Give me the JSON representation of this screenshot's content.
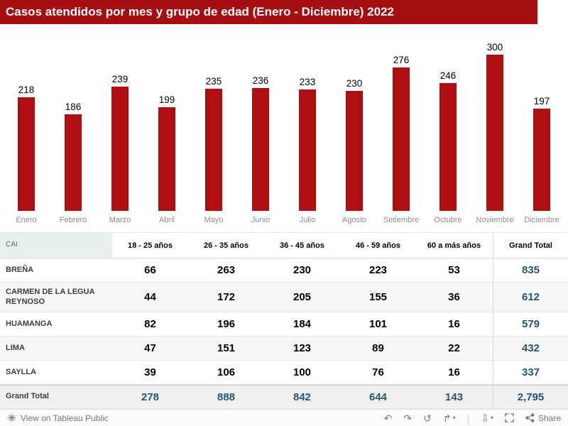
{
  "title_bar": {
    "title": "Casos atendidos por mes y grupo de edad (Enero - Diciembre) 2022"
  },
  "chart_data": {
    "type": "bar",
    "title": "Casos atendidos por mes y grupo de edad (Enero - Diciembre) 2022",
    "categories": [
      "Enero",
      "Febrero",
      "Marzo",
      "Abril",
      "Mayo",
      "Junio",
      "Julio",
      "Agosto",
      "Setiembre",
      "Octubre",
      "Noviembre",
      "Diciembre"
    ],
    "values": [
      218,
      186,
      239,
      199,
      235,
      236,
      233,
      230,
      276,
      246,
      300,
      197
    ],
    "ylim": [
      0,
      300
    ],
    "bar_color": "#B00F11",
    "value_labels_shown": true,
    "legend": "none",
    "grid": false
  },
  "table": {
    "id_header": "CAI",
    "columns": [
      "18 - 25 años",
      "26 - 35 años",
      "36 - 45 años",
      "46 - 59 años",
      "60 a más años"
    ],
    "total_header": "Grand Total",
    "rows": [
      {
        "label": "BREÑA",
        "values": [
          "66",
          "263",
          "230",
          "223",
          "53"
        ],
        "total": "835"
      },
      {
        "label": "CARMEN DE LA LEGUA REYNOSO",
        "values": [
          "44",
          "172",
          "205",
          "155",
          "36"
        ],
        "total": "612"
      },
      {
        "label": "HUAMANGA",
        "values": [
          "82",
          "196",
          "184",
          "101",
          "16"
        ],
        "total": "579"
      },
      {
        "label": "LIMA",
        "values": [
          "47",
          "151",
          "123",
          "89",
          "22"
        ],
        "total": "432"
      },
      {
        "label": "SAYLLA",
        "values": [
          "39",
          "106",
          "100",
          "76",
          "16"
        ],
        "total": "337"
      }
    ],
    "grand_total": {
      "label": "Grand Total",
      "values": [
        "278",
        "888",
        "842",
        "644",
        "143"
      ],
      "total": "2,795"
    }
  },
  "footer": {
    "view_label": "View on Tableau Public",
    "buttons": [
      {
        "name": "undo",
        "glyph": "↶"
      },
      {
        "name": "redo",
        "glyph": "↷"
      },
      {
        "name": "replay",
        "glyph": "↺"
      },
      {
        "name": "export",
        "glyph": "↱",
        "caret": true
      },
      {
        "name": "separator",
        "glyph": "|"
      },
      {
        "name": "download",
        "glyph": "⇩",
        "caret": true
      },
      {
        "name": "fullscreen",
        "svg": "fullscreen"
      },
      {
        "name": "share",
        "svg": "share",
        "label": "Share"
      }
    ]
  },
  "colors": {
    "header_bg": "#A50F12",
    "bar": "#B00F11",
    "grand_total_text": "#26566F",
    "axis_label": "#8C8C8C",
    "stripe": "#F7F7F7",
    "grand_total_row_bg": "#F0F0F0",
    "cai_header_bg": "#E9F1EE"
  }
}
